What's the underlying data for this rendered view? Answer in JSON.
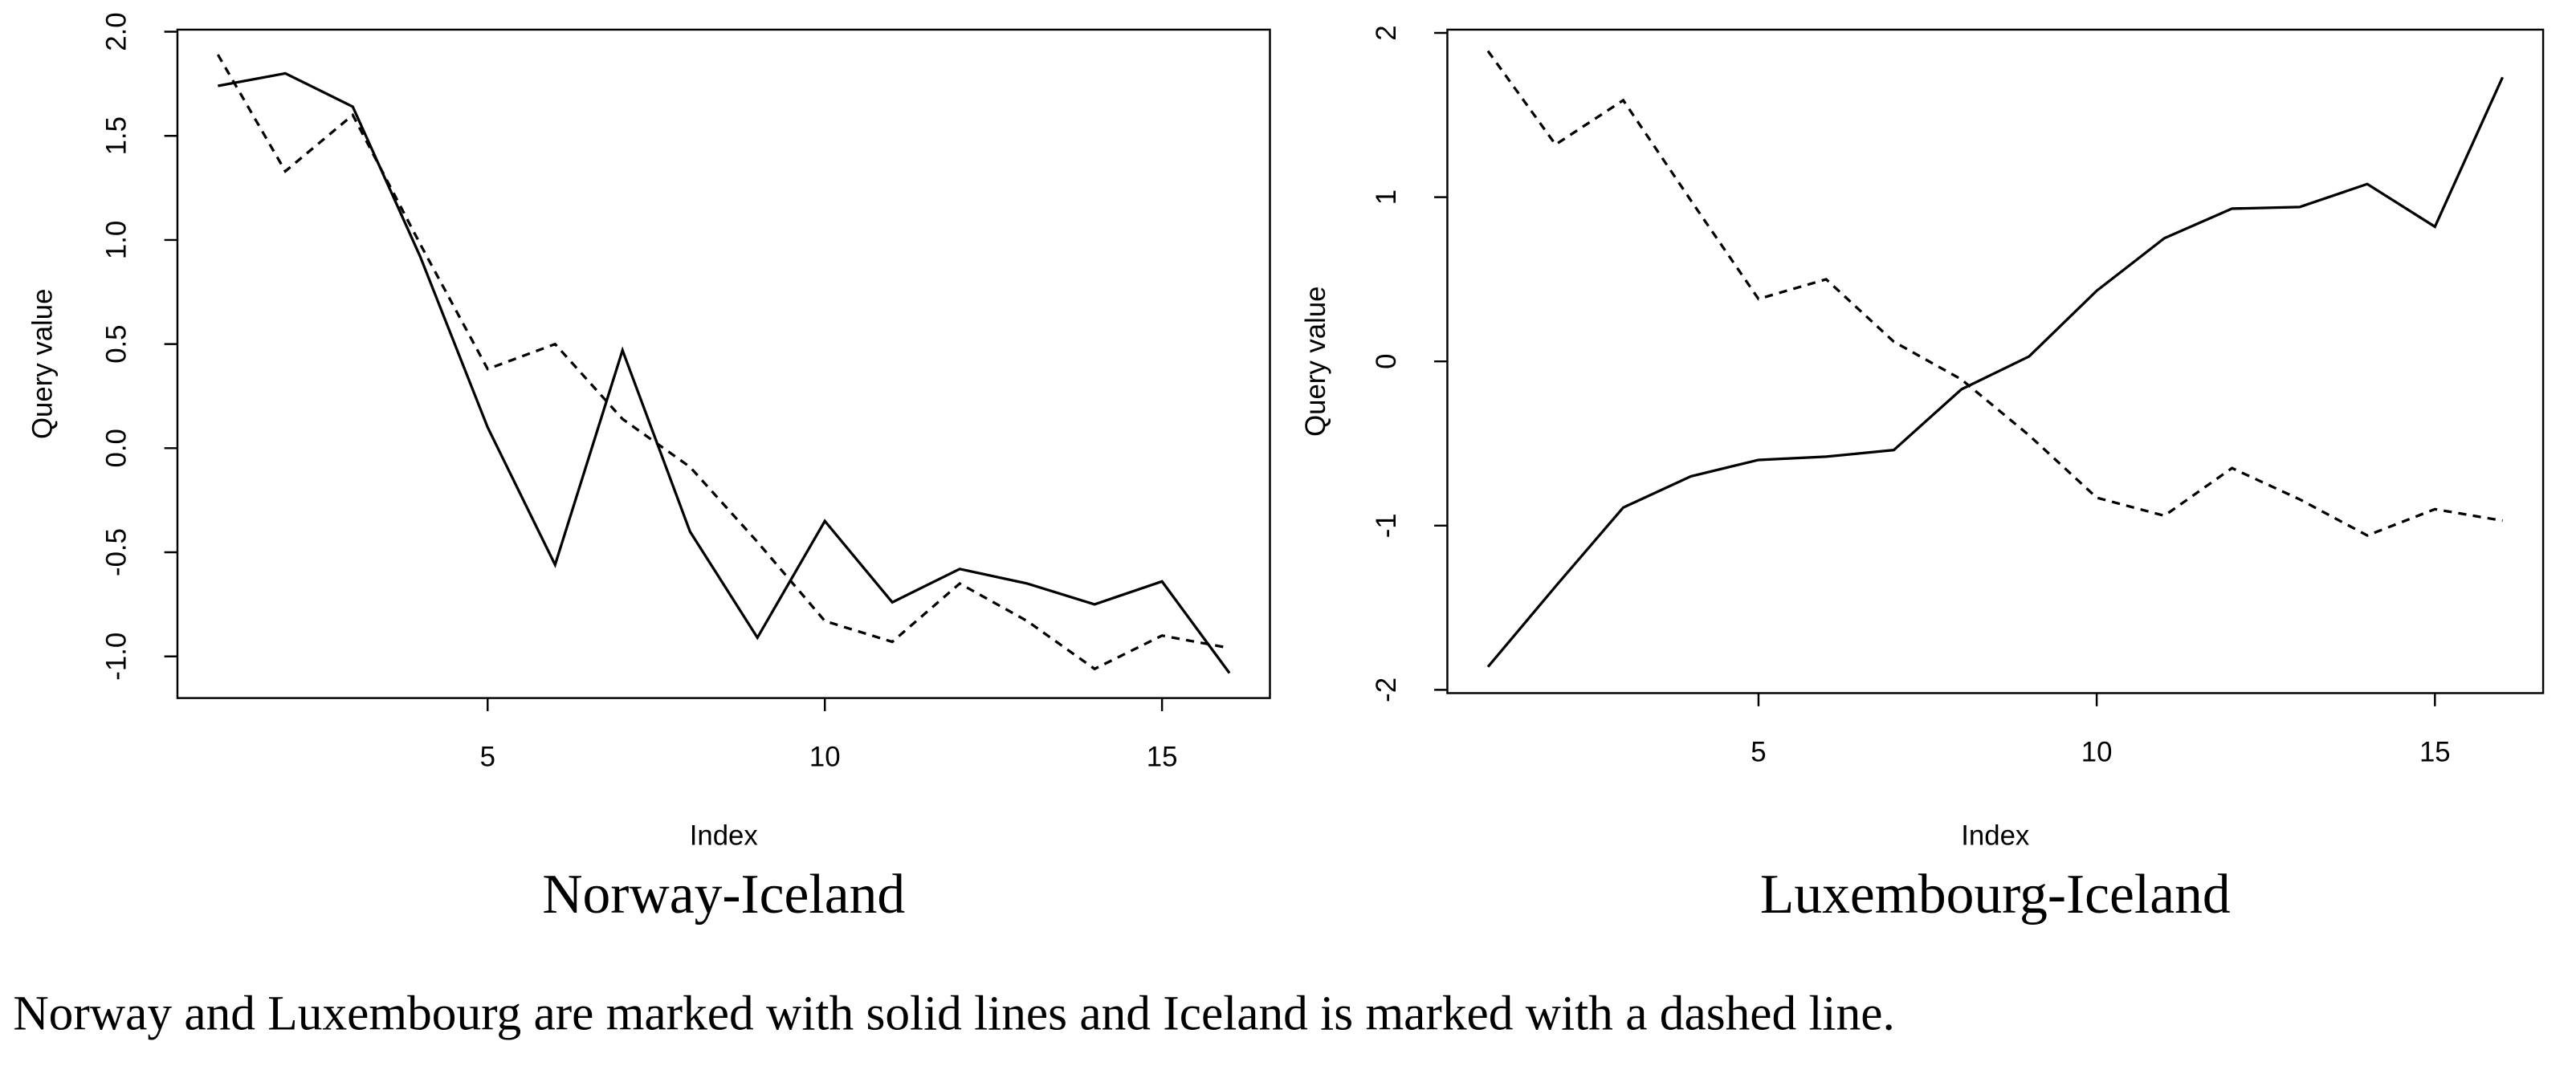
{
  "chart_data": [
    {
      "type": "line",
      "title": "Norway-Iceland",
      "xlabel": "Index",
      "ylabel": "Query value",
      "x": [
        1,
        2,
        3,
        4,
        5,
        6,
        7,
        8,
        9,
        10,
        11,
        12,
        13,
        14,
        15,
        16
      ],
      "series": [
        {
          "color": "#000000",
          "dash": "solid",
          "values": [
            1.74,
            1.8,
            1.64,
            0.92,
            0.1,
            -0.56,
            0.47,
            -0.4,
            -0.91,
            -0.35,
            -0.74,
            -0.58,
            -0.65,
            -0.75,
            -0.64,
            -1.08
          ]
        },
        {
          "color": "#000000",
          "dash": "dashed",
          "values": [
            1.89,
            1.33,
            1.6,
            0.98,
            0.38,
            0.5,
            0.14,
            -0.09,
            -0.45,
            -0.83,
            -0.93,
            -0.65,
            -0.83,
            -1.06,
            -0.9,
            -0.96
          ]
        }
      ],
      "xlim": [
        0.4,
        16.6
      ],
      "ylim": [
        -1.2,
        2.01
      ],
      "xticks": [
        5,
        10,
        15
      ],
      "yticks": [
        {
          "value": -1.0,
          "label": "-1.0"
        },
        -0.5,
        {
          "value": 0.0,
          "label": "0.0"
        },
        0.5,
        {
          "value": 1.0,
          "label": "1.0"
        },
        1.5,
        {
          "value": 2.0,
          "label": "2.0"
        }
      ]
    },
    {
      "type": "line",
      "title": "Luxembourg-Iceland",
      "xlabel": "Index",
      "ylabel": "Query value",
      "x": [
        1,
        2,
        3,
        4,
        5,
        6,
        7,
        8,
        9,
        10,
        11,
        12,
        13,
        14,
        15,
        16
      ],
      "series": [
        {
          "color": "#000000",
          "dash": "solid",
          "values": [
            -1.86,
            -1.37,
            -0.89,
            -0.7,
            -0.6,
            -0.58,
            -0.54,
            -0.17,
            0.03,
            0.43,
            0.75,
            0.93,
            0.94,
            1.08,
            0.82,
            1.73
          ]
        },
        {
          "color": "#000000",
          "dash": "dashed",
          "values": [
            1.89,
            1.32,
            1.59,
            0.98,
            0.38,
            0.5,
            0.12,
            -0.11,
            -0.45,
            -0.83,
            -0.94,
            -0.65,
            -0.84,
            -1.06,
            -0.9,
            -0.97
          ]
        }
      ],
      "xlim": [
        0.4,
        16.6
      ],
      "ylim": [
        -2.02,
        2.02
      ],
      "xticks": [
        5,
        10,
        15
      ],
      "yticks": [
        -2,
        -1,
        0,
        1,
        2
      ]
    }
  ],
  "caption": "Norway and Luxembourg are marked with solid lines and Iceland is marked with a dashed line."
}
